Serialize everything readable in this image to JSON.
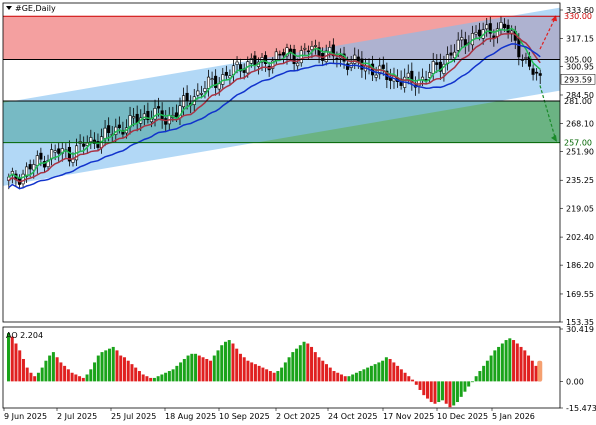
{
  "chart_data": {
    "type": "candlestick",
    "symbol_title": "#GE,Daily",
    "price_axis": {
      "ylim": [
        153.35,
        333.6
      ],
      "ticks": [
        "333.60",
        "317.15",
        "300.95",
        "284.50",
        "268.10",
        "251.90",
        "235.25",
        "219.05",
        "202.40",
        "186.20",
        "169.55",
        "153.35"
      ]
    },
    "x_ticks": [
      "9 Jun 2025",
      "2 Jul 2025",
      "25 Jul 2025",
      "18 Aug 2025",
      "10 Sep 2025",
      "2 Oct 2025",
      "24 Oct 2025",
      "17 Nov 2025",
      "10 Dec 2025",
      "5 Jan 2026"
    ],
    "levels": [
      {
        "label": "330.00",
        "value": 330.0,
        "color": "#cc0000"
      },
      {
        "label": "305.00",
        "value": 305.0,
        "color": "#000000"
      },
      {
        "label": "281.00",
        "value": 281.0,
        "color": "#000000"
      },
      {
        "label": "257.00",
        "value": 257.0,
        "color": "#006400"
      }
    ],
    "current_price": {
      "label": "293.59",
      "value": 293.59
    },
    "zones": [
      {
        "name": "resistance",
        "from": 305.0,
        "to": 330.0,
        "color": "#f08080"
      },
      {
        "name": "support",
        "from": 257.0,
        "to": 281.0,
        "color": "#3a9a5a"
      }
    ],
    "channel": {
      "color": "#7fbef0",
      "upper_start": 280.0,
      "upper_end": 335.0,
      "lower_start": 232.0,
      "lower_end": 287.0
    },
    "close_path": [
      235,
      238,
      244,
      248,
      252,
      250,
      255,
      258,
      261,
      265,
      268,
      272,
      274,
      270,
      276,
      282,
      288,
      292,
      296,
      300,
      304,
      302,
      306,
      309,
      306,
      312,
      309,
      307,
      304,
      302,
      300,
      296,
      294,
      292,
      293,
      298,
      304,
      311,
      318,
      320,
      322,
      324,
      315,
      300,
      294
    ],
    "moving_averages": [
      {
        "color": "#22bb55",
        "period": "fast"
      },
      {
        "color": "#aa3344",
        "period": "medium"
      },
      {
        "color": "#1133cc",
        "period": "slow"
      }
    ],
    "ao": {
      "label": "AO 2.204",
      "value": 2.204,
      "ylim": [
        -15.473,
        30.419
      ],
      "ticks": [
        "30.419",
        "0.00",
        "-15.473"
      ],
      "values": [
        28,
        26,
        22,
        18,
        13,
        8,
        5,
        3,
        5,
        8,
        12,
        15,
        17,
        14,
        11,
        9,
        7,
        5,
        4,
        3,
        2,
        4,
        7,
        11,
        15,
        17,
        18,
        19,
        20,
        18,
        15,
        14,
        12,
        10,
        8,
        6,
        4,
        3,
        2,
        2,
        3,
        4,
        5,
        6,
        7,
        9,
        11,
        13,
        15,
        16,
        16,
        15,
        14,
        13,
        12,
        15,
        18,
        21,
        23,
        24,
        22,
        19,
        16,
        14,
        12,
        11,
        10,
        9,
        8,
        7,
        6,
        5,
        6,
        8,
        11,
        14,
        17,
        19,
        21,
        23,
        22,
        20,
        17,
        14,
        12,
        10,
        8,
        6,
        5,
        4,
        3,
        3,
        4,
        5,
        6,
        7,
        8,
        9,
        10,
        11,
        12,
        14,
        13,
        11,
        9,
        7,
        5,
        3,
        1,
        -2,
        -5,
        -8,
        -10,
        -12,
        -13,
        -12,
        -11,
        -13,
        -15,
        -14,
        -12,
        -9,
        -6,
        -3,
        0,
        3,
        6,
        9,
        12,
        15,
        18,
        20,
        22,
        24,
        25,
        24,
        22,
        20,
        18,
        15,
        12,
        9,
        2.204
      ]
    }
  }
}
